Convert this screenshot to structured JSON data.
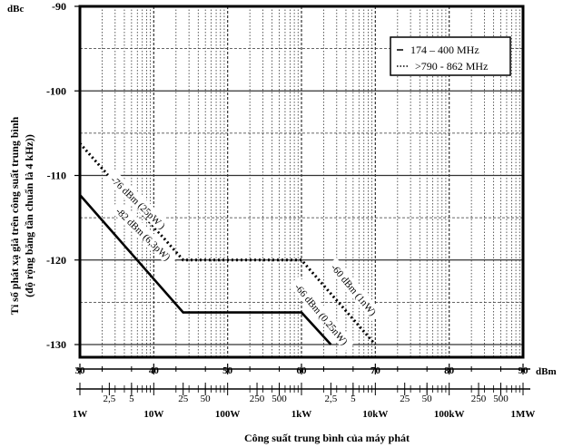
{
  "chart_data": {
    "type": "line",
    "x_unit": "dBm",
    "y_unit": "dBc",
    "ylabel_line1": "Tỉ số phát xạ giả trên công suất trung bình",
    "ylabel_line2": "(độ rộng băng tần chuẩn là 4 kHz))",
    "xlabel": "Công suất trung bình của máy phát",
    "xlim": [
      30,
      90
    ],
    "ylim": [
      -131.5,
      -90
    ],
    "y_ticks": [
      -90,
      -100,
      -110,
      -120,
      -130
    ],
    "y_tick_labels": [
      "-90",
      "-100",
      "-110",
      "-120",
      "-130"
    ],
    "x_ticks": [
      30,
      40,
      50,
      60,
      70,
      80,
      90
    ],
    "x_tick_labels": [
      "30",
      "40",
      "50",
      "60",
      "70",
      "80",
      "90"
    ],
    "watt_scale": [
      {
        "label": "1W",
        "dbm": 30,
        "row": 2
      },
      {
        "label": "2,5",
        "dbm": 33.98,
        "row": 1
      },
      {
        "label": "5",
        "dbm": 36.99,
        "row": 1
      },
      {
        "label": "10W",
        "dbm": 40,
        "row": 2
      },
      {
        "label": "25",
        "dbm": 43.98,
        "row": 1
      },
      {
        "label": "50",
        "dbm": 46.99,
        "row": 1
      },
      {
        "label": "100W",
        "dbm": 50,
        "row": 2
      },
      {
        "label": "250",
        "dbm": 53.98,
        "row": 1
      },
      {
        "label": "500",
        "dbm": 56.99,
        "row": 1
      },
      {
        "label": "1kW",
        "dbm": 60,
        "row": 2
      },
      {
        "label": "2,5",
        "dbm": 63.98,
        "row": 1
      },
      {
        "label": "5",
        "dbm": 66.99,
        "row": 1
      },
      {
        "label": "10kW",
        "dbm": 70,
        "row": 2
      },
      {
        "label": "25",
        "dbm": 73.98,
        "row": 1
      },
      {
        "label": "50",
        "dbm": 76.99,
        "row": 1
      },
      {
        "label": "100kW",
        "dbm": 80,
        "row": 2
      },
      {
        "label": "250",
        "dbm": 83.98,
        "row": 1
      },
      {
        "label": "500",
        "dbm": 86.99,
        "row": 1
      },
      {
        "label": "1MW",
        "dbm": 90,
        "row": 2
      }
    ],
    "grid": true,
    "legend_position": "top-right",
    "series": [
      {
        "name": "174 – 400 MHz",
        "style": "solid",
        "x": [
          30,
          43.98,
          60,
          63.98
        ],
        "y": [
          -112.3,
          -126.2,
          -126.2,
          -130
        ]
      },
      {
        "name": ">790 - 862 MHz",
        "style": "dotted",
        "x": [
          30,
          43.98,
          60,
          70
        ],
        "y": [
          -106.2,
          -120,
          -120,
          -130
        ]
      }
    ],
    "annotations": [
      {
        "text": "-76 dBm (25pW )",
        "x": 37.9,
        "y": -113.2,
        "angle": 44
      },
      {
        "text": "-82 dBm (6,3pW)",
        "x": 38.6,
        "y": -116.9,
        "angle": 44
      },
      {
        "text": "-60 dBm (1nW)",
        "x": 67.1,
        "y": -123.5,
        "angle": 50
      },
      {
        "text": "-66 dBm (0,25nW)",
        "x": 62.7,
        "y": -126.4,
        "angle": 50
      }
    ]
  }
}
